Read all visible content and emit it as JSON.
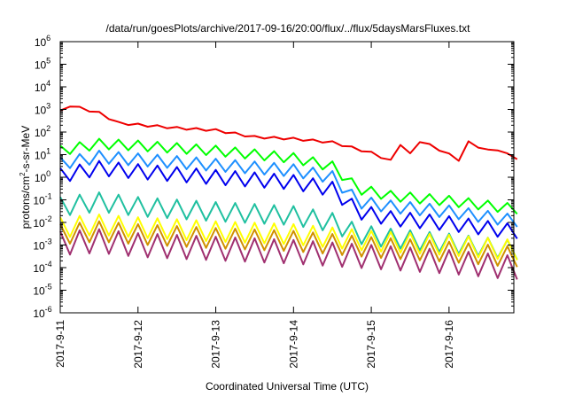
{
  "chart_data": {
    "type": "line",
    "title": "/data/run/goesPlots/archive/2017-09-16/20:00/flux/../flux/5daysMarsFluxes.txt",
    "xlabel": "Coordinated Universal Time (UTC)",
    "ylabel": "protons/cm2-s-sr-MeV",
    "ylabel_parts": [
      "protons/cm",
      "2",
      "-s-sr-MeV"
    ],
    "yscale": "log",
    "ylim_exp": [
      -6,
      6
    ],
    "xlim": [
      "2017-09-11",
      "2017-09-16T20:00"
    ],
    "x_ticks": [
      "2017-9-11",
      "2017-9-12",
      "2017-9-13",
      "2017-9-14",
      "2017-9-15",
      "2017-9-16"
    ],
    "y_ticks": [
      {
        "base": "10",
        "exp": "-6"
      },
      {
        "base": "10",
        "exp": "-5"
      },
      {
        "base": "10",
        "exp": "-4"
      },
      {
        "base": "10",
        "exp": "-3"
      },
      {
        "base": "10",
        "exp": "-2"
      },
      {
        "base": "10",
        "exp": "-1"
      },
      {
        "base": "10",
        "exp": "0"
      },
      {
        "base": "10",
        "exp": "1"
      },
      {
        "base": "10",
        "exp": "2"
      },
      {
        "base": "10",
        "exp": "3"
      },
      {
        "base": "10",
        "exp": "4"
      },
      {
        "base": "10",
        "exp": "5"
      },
      {
        "base": "10",
        "exp": "6"
      }
    ],
    "grid": false,
    "legend": "none",
    "series": [
      {
        "color": "#ee0000",
        "sawtooth_amplitude": 1.0,
        "points": [
          [
            "2017-09-11T00:00",
            800
          ],
          [
            "2017-09-11T03:00",
            1500
          ],
          [
            "2017-09-11T12:00",
            700
          ],
          [
            "2017-09-11T18:00",
            250
          ],
          [
            "2017-09-12T12:00",
            150
          ],
          [
            "2017-09-13T00:00",
            120
          ],
          [
            "2017-09-13T12:00",
            60
          ],
          [
            "2017-09-14T00:00",
            50
          ],
          [
            "2017-09-14T12:00",
            35
          ],
          [
            "2017-09-15T00:00",
            12
          ],
          [
            "2017-09-15T08:00",
            4
          ],
          [
            "2017-09-15T09:00",
            30
          ],
          [
            "2017-09-15T14:00",
            5
          ],
          [
            "2017-09-15T15:00",
            40
          ],
          [
            "2017-09-15T20:00",
            20
          ],
          [
            "2017-09-16T04:00",
            5
          ],
          [
            "2017-09-16T05:00",
            40
          ],
          [
            "2017-09-16T12:00",
            15
          ],
          [
            "2017-09-16T13:00",
            25
          ],
          [
            "2017-09-16T20:00",
            7
          ]
        ]
      },
      {
        "color": "#00ff00",
        "sawtooth_amplitude": 0.45,
        "points": [
          [
            "2017-09-11T00:00",
            15
          ],
          [
            "2017-09-11T12:00",
            30
          ],
          [
            "2017-09-12T00:00",
            25
          ],
          [
            "2017-09-13T00:00",
            15
          ],
          [
            "2017-09-14T00:00",
            7
          ],
          [
            "2017-09-14T12:00",
            3
          ],
          [
            "2017-09-14T20:00",
            0.3
          ],
          [
            "2017-09-15T06:00",
            0.15
          ],
          [
            "2017-09-16T00:00",
            0.09
          ],
          [
            "2017-09-16T20:00",
            0.04
          ]
        ]
      },
      {
        "color": "#1e90ff",
        "sawtooth_amplitude": 0.55,
        "points": [
          [
            "2017-09-11T00:00",
            4
          ],
          [
            "2017-09-11T12:00",
            8
          ],
          [
            "2017-09-12T00:00",
            6
          ],
          [
            "2017-09-13T00:00",
            3.5
          ],
          [
            "2017-09-14T00:00",
            2
          ],
          [
            "2017-09-14T12:00",
            1
          ],
          [
            "2017-09-14T20:00",
            0.08
          ],
          [
            "2017-09-15T06:00",
            0.05
          ],
          [
            "2017-09-16T00:00",
            0.03
          ],
          [
            "2017-09-16T20:00",
            0.012
          ]
        ]
      },
      {
        "color": "#0000ee",
        "sawtooth_amplitude": 0.65,
        "points": [
          [
            "2017-09-11T00:00",
            1.2
          ],
          [
            "2017-09-11T12:00",
            2.5
          ],
          [
            "2017-09-12T00:00",
            1.8
          ],
          [
            "2017-09-13T00:00",
            1
          ],
          [
            "2017-09-14T00:00",
            0.6
          ],
          [
            "2017-09-14T12:00",
            0.3
          ],
          [
            "2017-09-14T20:00",
            0.03
          ],
          [
            "2017-09-15T06:00",
            0.015
          ],
          [
            "2017-09-16T00:00",
            0.009
          ],
          [
            "2017-09-16T20:00",
            0.004
          ]
        ]
      },
      {
        "color": "#20c0a0",
        "sawtooth_amplitude": 0.85,
        "points": [
          [
            "2017-09-11T00:00",
            0.05
          ],
          [
            "2017-09-11T12:00",
            0.08
          ],
          [
            "2017-09-12T00:00",
            0.05
          ],
          [
            "2017-09-13T00:00",
            0.03
          ],
          [
            "2017-09-14T00:00",
            0.02
          ],
          [
            "2017-09-14T12:00",
            0.01
          ],
          [
            "2017-09-14T20:00",
            0.003
          ],
          [
            "2017-09-15T06:00",
            0.002
          ],
          [
            "2017-09-16T00:00",
            0.0012
          ],
          [
            "2017-09-16T20:00",
            0.0006
          ]
        ]
      },
      {
        "color": "#ffff00",
        "sawtooth_amplitude": 0.9,
        "points": [
          [
            "2017-09-11T00:00",
            0.006
          ],
          [
            "2017-09-11T12:00",
            0.008
          ],
          [
            "2017-09-12T00:00",
            0.006
          ],
          [
            "2017-09-13T00:00",
            0.004
          ],
          [
            "2017-09-14T00:00",
            0.003
          ],
          [
            "2017-09-15T00:00",
            0.0015
          ],
          [
            "2017-09-16T00:00",
            0.001
          ],
          [
            "2017-09-16T20:00",
            0.0006
          ]
        ]
      },
      {
        "color": "#d09000",
        "sawtooth_amplitude": 0.9,
        "points": [
          [
            "2017-09-11T00:00",
            0.003
          ],
          [
            "2017-09-11T12:00",
            0.004
          ],
          [
            "2017-09-12T00:00",
            0.003
          ],
          [
            "2017-09-13T00:00",
            0.002
          ],
          [
            "2017-09-14T00:00",
            0.0015
          ],
          [
            "2017-09-15T00:00",
            0.0008
          ],
          [
            "2017-09-16T00:00",
            0.0005
          ],
          [
            "2017-09-16T20:00",
            0.0003
          ]
        ]
      },
      {
        "color": "#a03070",
        "sawtooth_amplitude": 1.05,
        "points": [
          [
            "2017-09-11T00:00",
            0.0012
          ],
          [
            "2017-09-11T12:00",
            0.0015
          ],
          [
            "2017-09-12T00:00",
            0.001
          ],
          [
            "2017-09-13T00:00",
            0.0007
          ],
          [
            "2017-09-14T00:00",
            0.0005
          ],
          [
            "2017-09-15T00:00",
            0.0003
          ],
          [
            "2017-09-16T00:00",
            0.00018
          ],
          [
            "2017-09-16T20:00",
            0.0001
          ]
        ]
      }
    ]
  }
}
